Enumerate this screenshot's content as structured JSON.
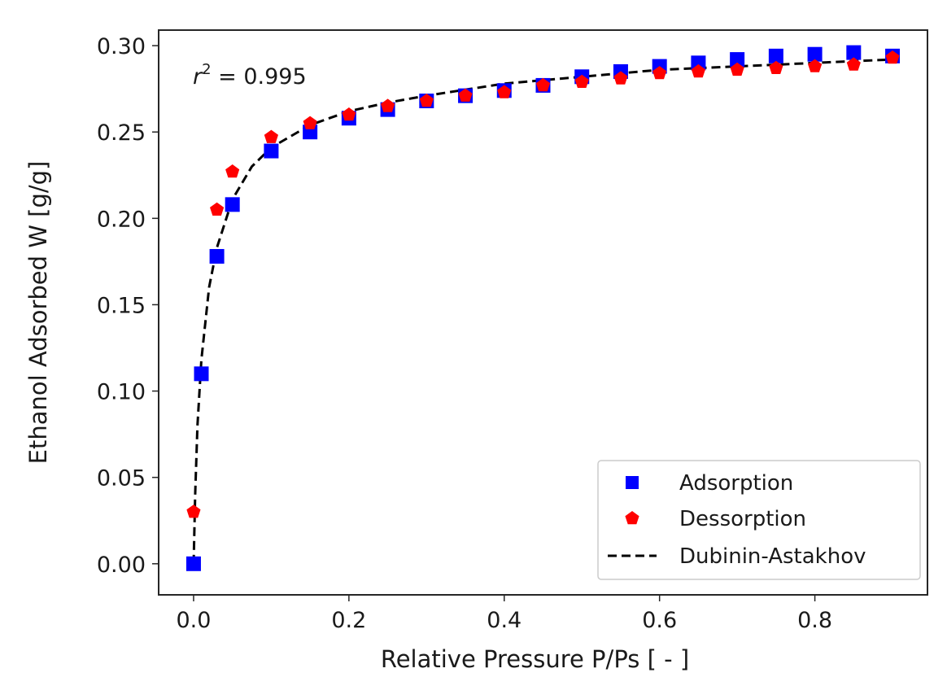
{
  "chart_data": {
    "type": "scatter",
    "xlabel": "Relative Pressure P/Ps  [ - ]",
    "ylabel": "Ethanol Adsorbed W [g/g]",
    "xlim": [
      -0.045,
      0.945
    ],
    "ylim": [
      -0.018,
      0.309
    ],
    "xticks": [
      0.0,
      0.2,
      0.4,
      0.6,
      0.8
    ],
    "xtick_labels": [
      "0.0",
      "0.2",
      "0.4",
      "0.6",
      "0.8"
    ],
    "yticks": [
      0.0,
      0.05,
      0.1,
      0.15,
      0.2,
      0.25,
      0.3
    ],
    "ytick_labels": [
      "0.00",
      "0.05",
      "0.10",
      "0.15",
      "0.20",
      "0.25",
      "0.30"
    ],
    "grid": false,
    "legend_position": "bottom-right",
    "annotation": {
      "prefix": "r",
      "sup": "2",
      "text": " = 0.995"
    },
    "series": [
      {
        "name": "Adsorption",
        "marker": "square",
        "color": "#0000ff",
        "x": [
          0.0,
          0.01,
          0.03,
          0.05,
          0.1,
          0.15,
          0.2,
          0.25,
          0.3,
          0.35,
          0.4,
          0.45,
          0.5,
          0.55,
          0.6,
          0.65,
          0.7,
          0.75,
          0.8,
          0.85,
          0.9
        ],
        "y": [
          0.0,
          0.11,
          0.178,
          0.208,
          0.239,
          0.25,
          0.258,
          0.263,
          0.268,
          0.271,
          0.274,
          0.277,
          0.282,
          0.285,
          0.288,
          0.29,
          0.292,
          0.294,
          0.295,
          0.296,
          0.294
        ]
      },
      {
        "name": "Dessorption",
        "marker": "pentagon",
        "color": "#ff0000",
        "x": [
          0.0,
          0.03,
          0.05,
          0.1,
          0.15,
          0.2,
          0.25,
          0.3,
          0.35,
          0.4,
          0.45,
          0.5,
          0.55,
          0.6,
          0.65,
          0.7,
          0.75,
          0.8,
          0.85,
          0.9
        ],
        "y": [
          0.03,
          0.205,
          0.227,
          0.247,
          0.255,
          0.26,
          0.265,
          0.268,
          0.271,
          0.273,
          0.277,
          0.279,
          0.281,
          0.284,
          0.285,
          0.286,
          0.287,
          0.288,
          0.289,
          0.293
        ]
      },
      {
        "name": "Dubinin-Astakhov",
        "type": "line",
        "style": "dashed",
        "color": "#000000",
        "x": [
          0.0,
          0.002,
          0.005,
          0.01,
          0.02,
          0.03,
          0.05,
          0.075,
          0.1,
          0.15,
          0.2,
          0.25,
          0.3,
          0.4,
          0.5,
          0.6,
          0.7,
          0.8,
          0.9
        ],
        "y": [
          0.0,
          0.04,
          0.08,
          0.118,
          0.16,
          0.183,
          0.211,
          0.23,
          0.241,
          0.254,
          0.262,
          0.267,
          0.271,
          0.278,
          0.282,
          0.286,
          0.288,
          0.29,
          0.292
        ]
      }
    ]
  }
}
